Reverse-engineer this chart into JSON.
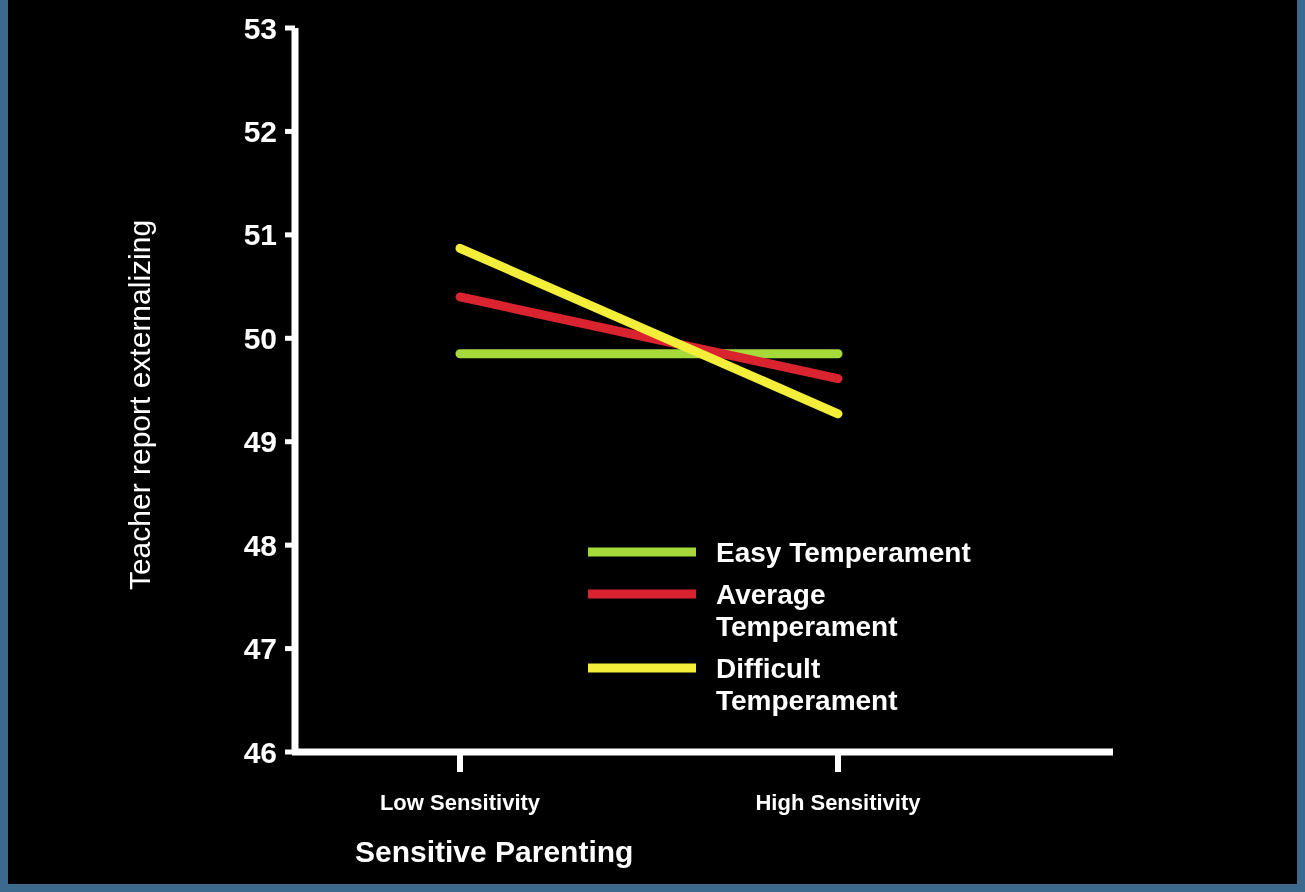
{
  "chart_data": {
    "type": "line",
    "xlabel": "Sensitive Parenting",
    "ylabel": "Teacher report externalizing",
    "categories": [
      "Low Sensitivity",
      "High Sensitivity"
    ],
    "ylim": [
      46,
      53
    ],
    "yticks": [
      46,
      47,
      48,
      49,
      50,
      51,
      52,
      53
    ],
    "grid": false,
    "legend": "bottom right",
    "marker": "none",
    "line_style": "solid",
    "series": [
      {
        "name": "Easy Temperament",
        "color": "#a6d93a",
        "values": [
          49.85,
          49.85
        ]
      },
      {
        "name": "Average Temperament",
        "color": "#d9242f",
        "values": [
          50.4,
          49.61
        ]
      },
      {
        "name": "Difficult Temperament",
        "color": "#f2ee3a",
        "values": [
          50.87,
          49.27
        ]
      }
    ]
  }
}
